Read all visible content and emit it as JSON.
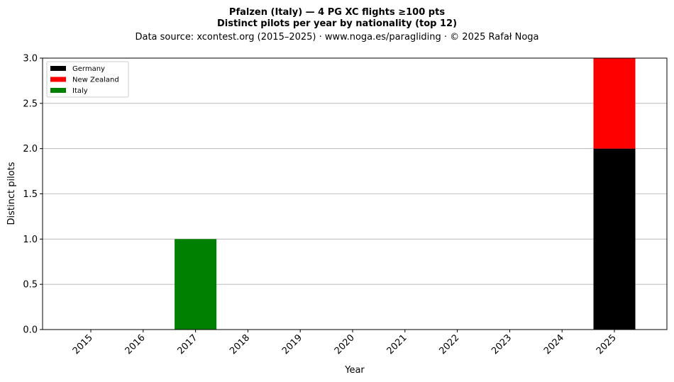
{
  "chart_data": {
    "type": "bar",
    "stacked": true,
    "title_line1": "Pfalzen (Italy)  —  4 PG XC flights ≥100 pts",
    "title_line2": "Distinct pilots per year by nationality (top 12)",
    "subtitle": "Data source: xcontest.org (2015–2025)  ·  www.noga.es/paragliding  ·  © 2025 Rafał Noga",
    "xlabel": "Year",
    "ylabel": "Distinct pilots",
    "ylim": [
      0,
      3.0
    ],
    "yticks": [
      "0.0",
      "0.5",
      "1.0",
      "1.5",
      "2.0",
      "2.5",
      "3.0"
    ],
    "ytick_values": [
      0,
      0.5,
      1.0,
      1.5,
      2.0,
      2.5,
      3.0
    ],
    "grid": "horizontal",
    "legend_position": "top-left",
    "categories": [
      "2015",
      "2016",
      "2017",
      "2018",
      "2019",
      "2020",
      "2021",
      "2022",
      "2023",
      "2024",
      "2025"
    ],
    "series": [
      {
        "name": "Germany",
        "color": "#000000",
        "values": [
          0,
          0,
          0,
          0,
          0,
          0,
          0,
          0,
          0,
          0,
          2
        ]
      },
      {
        "name": "New Zealand",
        "color": "#ff0000",
        "values": [
          0,
          0,
          0,
          0,
          0,
          0,
          0,
          0,
          0,
          0,
          1
        ]
      },
      {
        "name": "Italy",
        "color": "#008000",
        "values": [
          0,
          0,
          1,
          0,
          0,
          0,
          0,
          0,
          0,
          0,
          0
        ]
      }
    ]
  }
}
